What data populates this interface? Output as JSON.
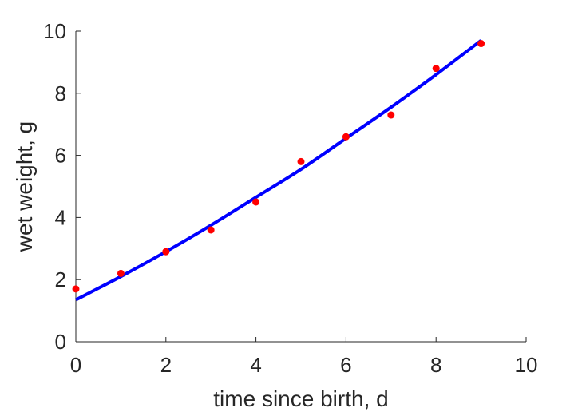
{
  "chart_data": {
    "type": "scatter",
    "title": "",
    "xlabel": "time since birth, d",
    "ylabel": "wet weight, g",
    "xlim": [
      0,
      10
    ],
    "ylim": [
      0,
      10
    ],
    "xticks": [
      "0",
      "2",
      "4",
      "6",
      "8",
      "10"
    ],
    "yticks": [
      "0",
      "2",
      "4",
      "6",
      "8",
      "10"
    ],
    "grid": false,
    "box": "left and bottom axes only",
    "series": [
      {
        "kind": "points",
        "color": "#ff0000",
        "x": [
          0,
          1,
          2,
          3,
          4,
          5,
          6,
          7,
          8,
          9
        ],
        "y": [
          1.7,
          2.2,
          2.9,
          3.6,
          4.5,
          5.8,
          6.6,
          7.3,
          8.8,
          9.6
        ]
      },
      {
        "kind": "curve",
        "color": "#0000ff",
        "x": [
          0,
          1,
          2,
          3,
          4,
          5,
          6,
          7,
          8,
          9
        ],
        "y": [
          1.35,
          2.1,
          2.9,
          3.75,
          4.65,
          5.55,
          6.55,
          7.55,
          8.6,
          9.7
        ]
      }
    ]
  }
}
